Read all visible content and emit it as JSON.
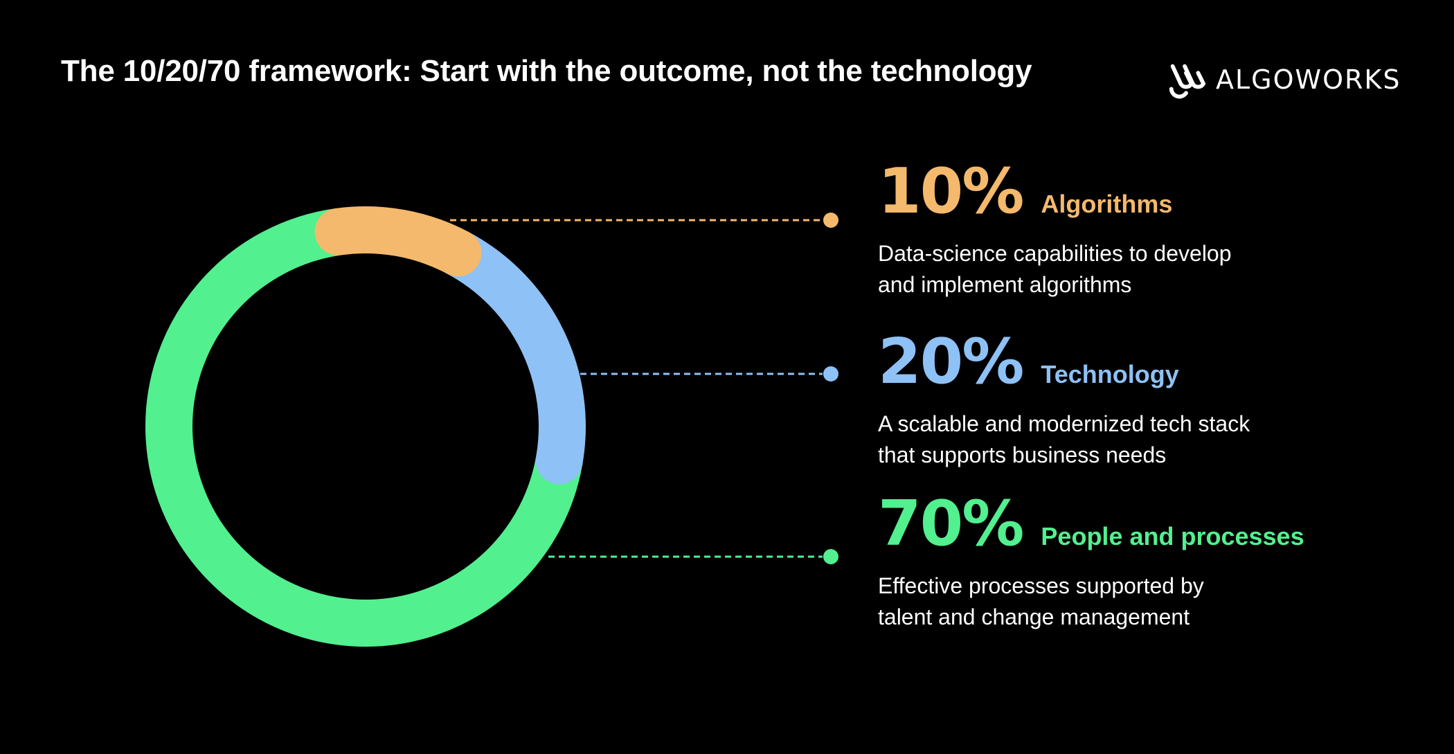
{
  "header": {
    "title": "The 10/20/70 framework: Start with the outcome, not the technology",
    "logo_text": "algoworks",
    "logo_icon": "algoworks-logo-mark"
  },
  "chart_data": {
    "type": "pie",
    "style": "donut",
    "series": [
      {
        "percent_label": "10%",
        "name": "Algorithms",
        "value": 10,
        "color": "#F4B96C",
        "description": [
          "Data-science capabilities to develop",
          "and implement algorithms"
        ]
      },
      {
        "percent_label": "20%",
        "name": "Technology",
        "value": 20,
        "color": "#8EC1F5",
        "description": [
          "A scalable and modernized tech stack",
          "that supports business needs"
        ]
      },
      {
        "percent_label": "70%",
        "name": "People and processes",
        "value": 70,
        "color": "#52F08F",
        "description": [
          "Effective processes supported by",
          "talent and change management"
        ]
      }
    ],
    "legend_position": "right"
  },
  "colors": {
    "background": "#000000",
    "text": "#FFFFFF"
  }
}
